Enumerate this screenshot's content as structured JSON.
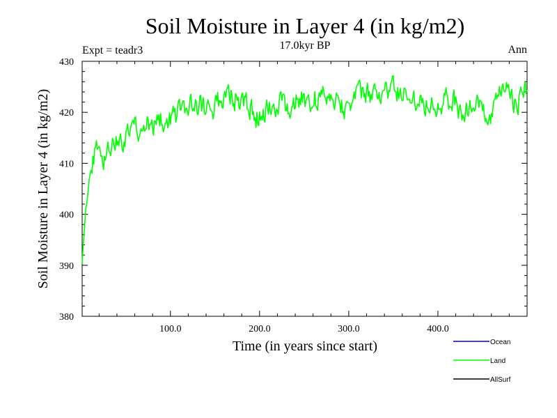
{
  "chart_data": {
    "type": "line",
    "title": "Soil Moisture in Layer 4 (in kg/m2)",
    "subtitle": "17.0kyr BP",
    "left_label": "Expt = teadr3",
    "right_label": "Ann",
    "xlabel": "Time (in years since start)",
    "ylabel": "Soil Moisture in Layer 4 (in kg/m2)",
    "xlim": [
      1,
      500
    ],
    "ylim": [
      380,
      430
    ],
    "x_ticks": [
      100,
      200,
      300,
      400
    ],
    "x_tick_labels": [
      "100.0",
      "200.0",
      "300.0",
      "400.0"
    ],
    "y_ticks": [
      380,
      390,
      400,
      410,
      420,
      430
    ],
    "y_tick_labels": [
      "380",
      "390",
      "400",
      "410",
      "420",
      "430"
    ],
    "legend": [
      {
        "name": "Ocean",
        "color": "#0000cc"
      },
      {
        "name": "Land",
        "color": "#00ff00"
      },
      {
        "name": "AllSurf",
        "color": "#000000"
      }
    ],
    "series": [
      {
        "name": "Land",
        "color": "#00ff00",
        "anchors": [
          [
            1,
            390
          ],
          [
            3,
            396
          ],
          [
            5,
            401
          ],
          [
            8,
            405
          ],
          [
            10,
            408
          ],
          [
            13,
            410
          ],
          [
            16,
            412
          ],
          [
            20,
            413.5
          ],
          [
            25,
            411
          ],
          [
            30,
            413
          ],
          [
            35,
            413.5
          ],
          [
            40,
            414.5
          ],
          [
            50,
            415
          ],
          [
            60,
            416
          ],
          [
            70,
            417
          ],
          [
            80,
            418
          ],
          [
            90,
            418.5
          ],
          [
            100,
            419
          ],
          [
            110,
            419.5
          ],
          [
            120,
            420.5
          ],
          [
            130,
            421.5
          ],
          [
            140,
            421
          ],
          [
            150,
            421.5
          ],
          [
            160,
            422
          ],
          [
            170,
            423
          ],
          [
            180,
            422.5
          ],
          [
            190,
            420.5
          ],
          [
            195,
            418
          ],
          [
            200,
            419.5
          ],
          [
            210,
            421
          ],
          [
            220,
            421.5
          ],
          [
            230,
            421.5
          ],
          [
            240,
            422
          ],
          [
            250,
            422.5
          ],
          [
            260,
            422.5
          ],
          [
            270,
            423
          ],
          [
            280,
            423.5
          ],
          [
            290,
            423
          ],
          [
            295,
            420.5
          ],
          [
            300,
            422.5
          ],
          [
            310,
            423
          ],
          [
            320,
            423.5
          ],
          [
            330,
            423
          ],
          [
            340,
            424
          ],
          [
            350,
            424.5
          ],
          [
            360,
            423.5
          ],
          [
            370,
            423
          ],
          [
            380,
            422.5
          ],
          [
            390,
            422
          ],
          [
            400,
            422
          ],
          [
            410,
            422.5
          ],
          [
            420,
            422
          ],
          [
            425,
            420
          ],
          [
            430,
            420.5
          ],
          [
            440,
            421
          ],
          [
            450,
            421
          ],
          [
            455,
            418.5
          ],
          [
            460,
            418
          ],
          [
            465,
            421
          ],
          [
            470,
            423.5
          ],
          [
            475,
            424.5
          ],
          [
            480,
            424
          ],
          [
            485,
            422
          ],
          [
            490,
            422.5
          ],
          [
            495,
            423.5
          ],
          [
            500,
            424.5
          ]
        ]
      }
    ]
  }
}
